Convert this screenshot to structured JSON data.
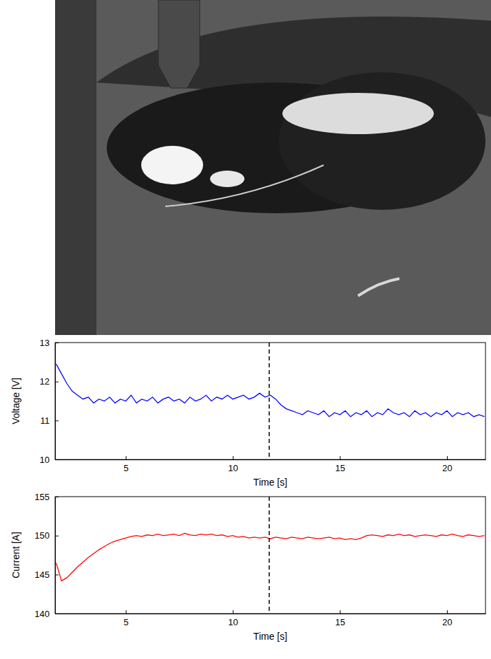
{
  "chart_data": [
    {
      "type": "line",
      "x_label": "Time [s]",
      "y_label": "Voltage [V]",
      "color": "#0000ff",
      "xlim": [
        1.7,
        21.8
      ],
      "xticks": [
        5,
        10,
        15,
        20
      ],
      "ylim": [
        10,
        13
      ],
      "yticks": [
        10,
        11,
        12,
        13
      ],
      "vline": 11.7,
      "x": [
        1.75,
        2,
        2.25,
        2.5,
        2.75,
        3,
        3.25,
        3.5,
        3.75,
        4,
        4.25,
        4.5,
        4.75,
        5,
        5.25,
        5.5,
        5.75,
        6,
        6.25,
        6.5,
        6.75,
        7,
        7.25,
        7.5,
        7.75,
        8,
        8.25,
        8.5,
        8.75,
        9,
        9.25,
        9.5,
        9.75,
        10,
        10.25,
        10.5,
        10.75,
        11,
        11.25,
        11.5,
        11.75,
        12,
        12.25,
        12.5,
        12.75,
        13,
        13.25,
        13.5,
        13.75,
        14,
        14.25,
        14.5,
        14.75,
        15,
        15.25,
        15.5,
        15.75,
        16,
        16.25,
        16.5,
        16.75,
        17,
        17.25,
        17.5,
        17.75,
        18,
        18.25,
        18.5,
        18.75,
        19,
        19.25,
        19.5,
        19.75,
        20,
        20.25,
        20.5,
        20.75,
        21,
        21.25,
        21.5,
        21.75
      ],
      "values": [
        12.45,
        12.2,
        11.95,
        11.75,
        11.65,
        11.55,
        11.6,
        11.45,
        11.55,
        11.5,
        11.6,
        11.45,
        11.55,
        11.5,
        11.65,
        11.45,
        11.55,
        11.5,
        11.6,
        11.45,
        11.55,
        11.6,
        11.5,
        11.55,
        11.45,
        11.6,
        11.5,
        11.55,
        11.65,
        11.5,
        11.6,
        11.55,
        11.65,
        11.55,
        11.6,
        11.65,
        11.55,
        11.6,
        11.7,
        11.6,
        11.65,
        11.55,
        11.4,
        11.3,
        11.25,
        11.2,
        11.15,
        11.25,
        11.2,
        11.15,
        11.25,
        11.1,
        11.2,
        11.15,
        11.25,
        11.1,
        11.2,
        11.15,
        11.25,
        11.1,
        11.2,
        11.15,
        11.3,
        11.2,
        11.15,
        11.2,
        11.1,
        11.25,
        11.15,
        11.2,
        11.1,
        11.2,
        11.15,
        11.25,
        11.1,
        11.2,
        11.15,
        11.2,
        11.1,
        11.15,
        11.1
      ]
    },
    {
      "type": "line",
      "x_label": "Time [s]",
      "y_label": "Current [A]",
      "color": "#ff0000",
      "xlim": [
        1.7,
        21.8
      ],
      "xticks": [
        5,
        10,
        15,
        20
      ],
      "ylim": [
        140,
        155
      ],
      "yticks": [
        140,
        145,
        150,
        155
      ],
      "vline": 11.7,
      "x": [
        1.75,
        2,
        2.25,
        2.5,
        2.75,
        3,
        3.25,
        3.5,
        3.75,
        4,
        4.25,
        4.5,
        4.75,
        5,
        5.25,
        5.5,
        5.75,
        6,
        6.25,
        6.5,
        6.75,
        7,
        7.25,
        7.5,
        7.75,
        8,
        8.25,
        8.5,
        8.75,
        9,
        9.25,
        9.5,
        9.75,
        10,
        10.25,
        10.5,
        10.75,
        11,
        11.25,
        11.5,
        11.75,
        12,
        12.25,
        12.5,
        12.75,
        13,
        13.25,
        13.5,
        13.75,
        14,
        14.25,
        14.5,
        14.75,
        15,
        15.25,
        15.5,
        15.75,
        16,
        16.25,
        16.5,
        16.75,
        17,
        17.25,
        17.5,
        17.75,
        18,
        18.25,
        18.5,
        18.75,
        19,
        19.25,
        19.5,
        19.75,
        20,
        20.25,
        20.5,
        20.75,
        21,
        21.25,
        21.5,
        21.75
      ],
      "values": [
        146.5,
        144.2,
        144.6,
        145.3,
        146,
        146.6,
        147.2,
        147.7,
        148.2,
        148.6,
        149,
        149.3,
        149.5,
        149.7,
        149.9,
        150,
        149.9,
        150.1,
        150,
        150.2,
        150,
        150.1,
        150.2,
        150,
        150.3,
        150.1,
        150,
        150.2,
        150.1,
        150.2,
        150,
        150.1,
        149.9,
        150,
        149.8,
        149.9,
        149.7,
        149.8,
        149.7,
        149.8,
        149.6,
        149.8,
        149.7,
        149.6,
        149.8,
        149.7,
        149.6,
        149.8,
        149.7,
        149.6,
        149.7,
        149.8,
        149.6,
        149.7,
        149.5,
        149.6,
        149.5,
        149.7,
        150,
        150.1,
        150,
        149.9,
        150.1,
        150,
        150.2,
        150,
        150.1,
        149.9,
        150,
        150.1,
        150,
        149.9,
        150.1,
        150,
        150.2,
        150,
        149.9,
        150.1,
        150,
        149.9,
        150
      ]
    }
  ]
}
